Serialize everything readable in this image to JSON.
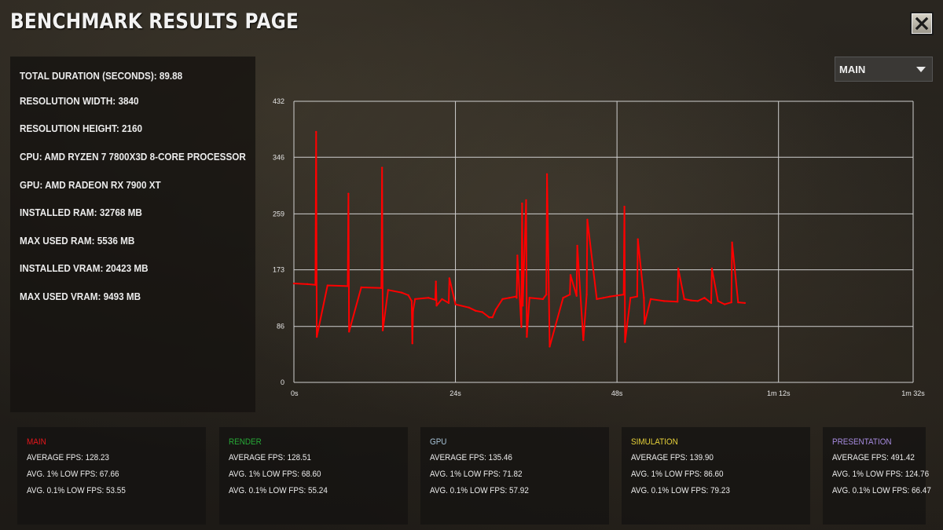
{
  "page_title": "BENCHMARK RESULTS PAGE",
  "close_icon": "close-icon",
  "info": [
    "TOTAL DURATION (SECONDS): 89.88",
    "RESOLUTION WIDTH: 3840",
    "RESOLUTION HEIGHT: 2160",
    "CPU: AMD RYZEN 7 7800X3D 8-CORE PROCESSOR",
    "GPU: AMD RADEON RX 7900 XT",
    "INSTALLED RAM: 32768 MB",
    "MAX USED RAM: 5536 MB",
    "INSTALLED VRAM: 20423 MB",
    "MAX USED VRAM: 9493 MB"
  ],
  "dropdown": {
    "selected": "MAIN",
    "icon": "chevron-down-icon"
  },
  "chart_data": {
    "type": "line",
    "title": "",
    "xlabel": "",
    "ylabel": "",
    "series_color": "#ff0000",
    "xlim": [
      0,
      92
    ],
    "ylim": [
      0,
      432
    ],
    "x_ticks": [
      "0s",
      "24s",
      "48s",
      "1m 12s",
      "1m 32s"
    ],
    "x_tick_values": [
      0,
      24,
      48,
      72,
      92
    ],
    "y_ticks": [
      "0",
      "86",
      "173",
      "259",
      "346",
      "432"
    ],
    "y_tick_values": [
      0,
      86,
      173,
      259,
      346,
      432
    ],
    "grid": true,
    "series": [
      {
        "x": [
          0,
          2,
          3.2,
          3.3,
          3.4,
          5,
          8,
          8.1,
          8.2,
          10,
          13,
          13.1,
          13.2,
          14,
          16,
          17,
          17.5,
          17.6,
          17.7,
          18,
          20,
          21,
          21.1,
          21.2,
          22,
          23,
          23.1,
          24,
          26,
          27,
          28,
          29,
          29.5,
          30,
          31,
          32,
          33,
          33.1,
          33.2,
          33.8,
          33.9,
          34,
          34.5,
          34.6,
          35,
          37,
          37.5,
          37.6,
          38,
          40,
          41,
          41.1,
          42,
          42.1,
          43,
          43.5,
          43.6,
          45,
          46,
          47,
          49,
          49.1,
          49.2,
          50,
          51,
          51.1,
          52,
          52.1,
          53,
          55,
          57,
          57.1,
          58,
          59,
          60,
          61,
          62,
          62.1,
          63,
          64,
          65,
          65.1,
          66,
          67
        ],
        "values": [
          152,
          151,
          150,
          385,
          70,
          149,
          148,
          290,
          78,
          146,
          145,
          330,
          80,
          142,
          138,
          134,
          125,
          60,
          110,
          128,
          130,
          127,
          155,
          118,
          128,
          122,
          160,
          120,
          115,
          110,
          108,
          100,
          100,
          112,
          128,
          130,
          132,
          130,
          195,
          85,
          275,
          118,
          280,
          70,
          130,
          128,
          135,
          320,
          55,
          130,
          135,
          165,
          133,
          210,
          65,
          135,
          250,
          128,
          130,
          132,
          135,
          270,
          62,
          130,
          132,
          220,
          130,
          90,
          128,
          125,
          124,
          175,
          128,
          126,
          125,
          130,
          122,
          175,
          125,
          120,
          123,
          215,
          123,
          122
        ]
      }
    ]
  },
  "stats": [
    {
      "title": "MAIN",
      "color": "#e8161b",
      "average": "AVERAGE FPS: 128.23",
      "low1": "AVG. 1% LOW FPS: 67.66",
      "low01": "AVG. 0.1% LOW FPS: 53.55"
    },
    {
      "title": "RENDER",
      "color": "#27a836",
      "average": "AVERAGE FPS: 128.51",
      "low1": "AVG. 1% LOW FPS: 68.60",
      "low01": "AVG. 0.1% LOW FPS: 55.24"
    },
    {
      "title": "GPU",
      "color": "#a8c4d8",
      "average": "AVERAGE FPS: 135.46",
      "low1": "AVG. 1% LOW FPS: 71.82",
      "low01": "AVG. 0.1% LOW FPS: 57.92"
    },
    {
      "title": "SIMULATION",
      "color": "#e8d23a",
      "average": "AVERAGE FPS: 139.90",
      "low1": "AVG. 1% LOW FPS: 86.60",
      "low01": "AVG. 0.1% LOW FPS: 79.23"
    },
    {
      "title": "PRESENTATION",
      "color": "#a78be0",
      "average": "AVERAGE FPS: 491.42",
      "low1": "AVG. 1% LOW FPS: 124.76",
      "low01": "AVG. 0.1% LOW FPS: 66.47"
    }
  ]
}
